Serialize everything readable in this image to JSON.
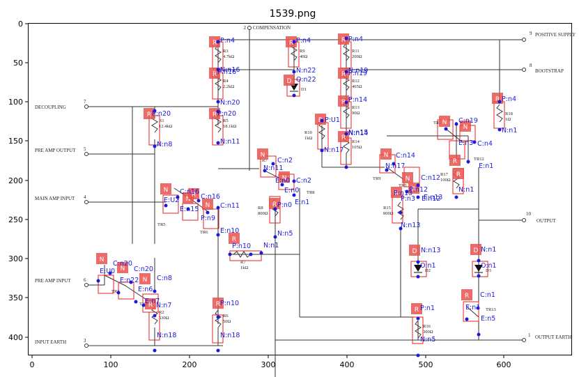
{
  "title": "1539.png",
  "axes": {
    "x_ticks": [
      "0",
      "100",
      "200",
      "300",
      "400",
      "500",
      "600",
      "700"
    ],
    "y_ticks": [
      "0",
      "50",
      "100",
      "150",
      "200",
      "250",
      "300",
      "350",
      "400"
    ]
  },
  "ports": [
    {
      "num": "2",
      "label": "COMPENSATION"
    },
    {
      "num": "9",
      "label": "POSITIVE SUPPLY"
    },
    {
      "num": "8",
      "label": "BOOTSTRAP"
    },
    {
      "num": "7",
      "label": "DECOUPLING"
    },
    {
      "num": "5",
      "label": "PRE AMP OUTPUT"
    },
    {
      "num": "4",
      "label": "MAIN AMP INPUT"
    },
    {
      "num": "10",
      "label": "OUTPUT"
    },
    {
      "num": "6",
      "label": "PRE AMP INPUT"
    },
    {
      "num": "3",
      "label": "INPUT EARTH"
    },
    {
      "num": "1",
      "label": "OUTPUT EARTH"
    }
  ],
  "components": [
    {
      "ref": "R3",
      "value": "4.7kΩ"
    },
    {
      "ref": "R9",
      "value": "40Ω"
    },
    {
      "ref": "R11",
      "value": "200Ω"
    },
    {
      "ref": "R4",
      "value": "2.2kΩ"
    },
    {
      "ref": "D1",
      "value": ""
    },
    {
      "ref": "R12",
      "value": "465Ω"
    },
    {
      "ref": "R1",
      "value": "12.4kΩ"
    },
    {
      "ref": "R5",
      "value": "18.1kΩ"
    },
    {
      "ref": "R10",
      "value": "1kΩ"
    },
    {
      "ref": "R13",
      "value": "90Ω"
    },
    {
      "ref": "R14",
      "value": "105Ω"
    },
    {
      "ref": "R18",
      "value": "1Ω"
    },
    {
      "ref": "TR1",
      "value": ""
    },
    {
      "ref": "TR2",
      "value": ""
    },
    {
      "ref": "TR3",
      "value": ""
    },
    {
      "ref": "TR4",
      "value": ""
    },
    {
      "ref": "TR5",
      "value": ""
    },
    {
      "ref": "TR6",
      "value": ""
    },
    {
      "ref": "TR7",
      "value": ""
    },
    {
      "ref": "TR8",
      "value": ""
    },
    {
      "ref": "TR9",
      "value": ""
    },
    {
      "ref": "TR12",
      "value": ""
    },
    {
      "ref": "TR13",
      "value": ""
    },
    {
      "ref": "R8",
      "value": "800Ω"
    },
    {
      "ref": "R15",
      "value": "800Ω"
    },
    {
      "ref": "R17",
      "value": "100Ω"
    },
    {
      "ref": "R7",
      "value": "1kΩ"
    },
    {
      "ref": "D2",
      "value": ""
    },
    {
      "ref": "D3",
      "value": ""
    },
    {
      "ref": "R2",
      "value": "530Ω"
    },
    {
      "ref": "R6",
      "value": "50Ω"
    },
    {
      "ref": "R16",
      "value": "300Ω"
    }
  ],
  "tags": [
    "R",
    "R",
    "R",
    "R",
    "D",
    "R",
    "R",
    "R",
    "R",
    "R",
    "R",
    "R",
    "N",
    "N",
    "N",
    "N",
    "N",
    "R",
    "N",
    "N",
    "R",
    "R",
    "R",
    "R",
    "D",
    "D",
    "N",
    "N",
    "N",
    "R",
    "R",
    "R",
    "N",
    "N",
    "R",
    "R",
    "R"
  ],
  "annotations": [
    "P:n4",
    "P:n4",
    "P:n4",
    "N:n16",
    "N:n22",
    "N:n19",
    "O:n22",
    "P:n16",
    "P:n19",
    "N:n20",
    "P:n20",
    "P:n20",
    "N:n8",
    "N:n11",
    "P:U1",
    "N:n17",
    "N:n14",
    "P:n14",
    "N:n15",
    "P:n4",
    "N:n1",
    "C:n19",
    "E:n3",
    "C:n4",
    "E:n1",
    "C:n2",
    "N:n11",
    "C:n14",
    "N:n17",
    "C:n2",
    "E:n0",
    "C:n12",
    "E:n0",
    "P:n12",
    "P:n3",
    "E:n12",
    "N:n1",
    "C:n16",
    "E:U2",
    "C:n16",
    "E:n15",
    "C:n11",
    "P:n9",
    "E:n13",
    "P:n13",
    "N:n13",
    "E:n1",
    "P:n0",
    "N:n5",
    "E:n10",
    "P:n10",
    "N:n1",
    "C:n20",
    "E:U0",
    "C:n20",
    "C:n8",
    "E:n22",
    "E:n6",
    "E:n7",
    "N:n7",
    "N:n18",
    "P:n10",
    "N:n18",
    "N:n13",
    "O:n1",
    "N:n1",
    "O:n1",
    "C:n1",
    "P:n1",
    "E:n1",
    "E:n5",
    "N:n5"
  ]
}
